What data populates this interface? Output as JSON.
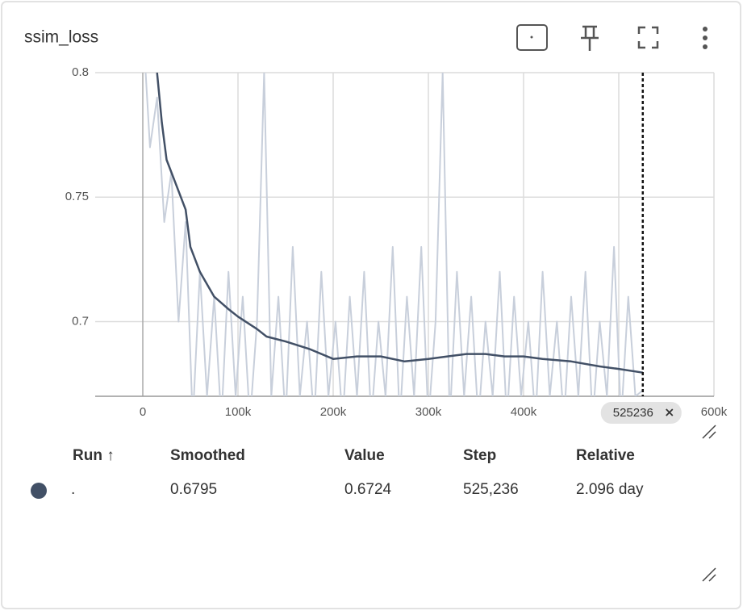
{
  "card": {
    "title": "ssim_loss"
  },
  "chart_data": {
    "type": "line",
    "xlim": [
      -50000,
      600000
    ],
    "ylim": [
      0.67,
      0.8
    ],
    "xticks": [
      0,
      {
        "value": 100000,
        "label": "100k"
      },
      {
        "value": 200000,
        "label": "200k"
      },
      {
        "value": 300000,
        "label": "300k"
      },
      {
        "value": 400000,
        "label": "400k"
      },
      {
        "value": 500000,
        "label": "500k"
      },
      {
        "value": 600000,
        "label": "600k"
      }
    ],
    "yticks": [
      0.7,
      0.75,
      0.8
    ],
    "grid": true,
    "cursor": 525236,
    "series": [
      {
        "color": "#c8cfdb",
        "x": [
          0,
          7500,
          15000,
          22500,
          30000,
          37500,
          45000,
          52500,
          60000,
          67500,
          75000,
          82500,
          90000,
          97500,
          105000,
          112500,
          120000,
          127500,
          135000,
          142500,
          150000,
          157500,
          165000,
          172500,
          180000,
          187500,
          195000,
          202500,
          210000,
          217500,
          225000,
          232500,
          240000,
          247500,
          255000,
          262500,
          270000,
          277500,
          285000,
          292500,
          300000,
          307500,
          315000,
          322500,
          330000,
          337500,
          345000,
          352500,
          360000,
          367500,
          375000,
          382500,
          390000,
          397500,
          405000,
          412500,
          420000,
          427500,
          435000,
          442500,
          450000,
          457500,
          465000,
          472500,
          480000,
          487500,
          495000,
          502500,
          510000,
          517500,
          525236
        ],
        "values": [
          0.82,
          0.77,
          0.79,
          0.74,
          0.76,
          0.7,
          0.74,
          0.66,
          0.72,
          0.67,
          0.71,
          0.66,
          0.72,
          0.67,
          0.71,
          0.66,
          0.7,
          0.8,
          0.67,
          0.71,
          0.66,
          0.73,
          0.67,
          0.7,
          0.66,
          0.72,
          0.67,
          0.7,
          0.66,
          0.71,
          0.67,
          0.72,
          0.66,
          0.7,
          0.67,
          0.73,
          0.66,
          0.71,
          0.67,
          0.73,
          0.66,
          0.7,
          0.8,
          0.66,
          0.72,
          0.67,
          0.71,
          0.66,
          0.7,
          0.67,
          0.72,
          0.66,
          0.71,
          0.67,
          0.7,
          0.66,
          0.72,
          0.67,
          0.7,
          0.66,
          0.71,
          0.67,
          0.72,
          0.66,
          0.7,
          0.67,
          0.73,
          0.66,
          0.71,
          0.67,
          0.6724
        ]
      },
      {
        "color": "#425066",
        "x": [
          15000,
          20000,
          25000,
          35000,
          45000,
          50000,
          60000,
          75000,
          90000,
          100000,
          120000,
          130000,
          150000,
          175000,
          200000,
          225000,
          250000,
          275000,
          300000,
          320000,
          340000,
          360000,
          380000,
          400000,
          420000,
          450000,
          480000,
          500000,
          525236
        ],
        "values": [
          0.8,
          0.78,
          0.765,
          0.755,
          0.745,
          0.73,
          0.72,
          0.71,
          0.705,
          0.702,
          0.697,
          0.694,
          0.692,
          0.689,
          0.685,
          0.686,
          0.686,
          0.684,
          0.685,
          0.686,
          0.687,
          0.687,
          0.686,
          0.686,
          0.685,
          0.684,
          0.682,
          0.681,
          0.6795
        ]
      }
    ]
  },
  "table": {
    "headers": [
      "Run ↑",
      "Smoothed",
      "Value",
      "Step",
      "Relative"
    ],
    "rows": [
      [
        ".",
        "0.6795",
        "0.6724",
        "525,236",
        "2.096 day"
      ]
    ]
  }
}
